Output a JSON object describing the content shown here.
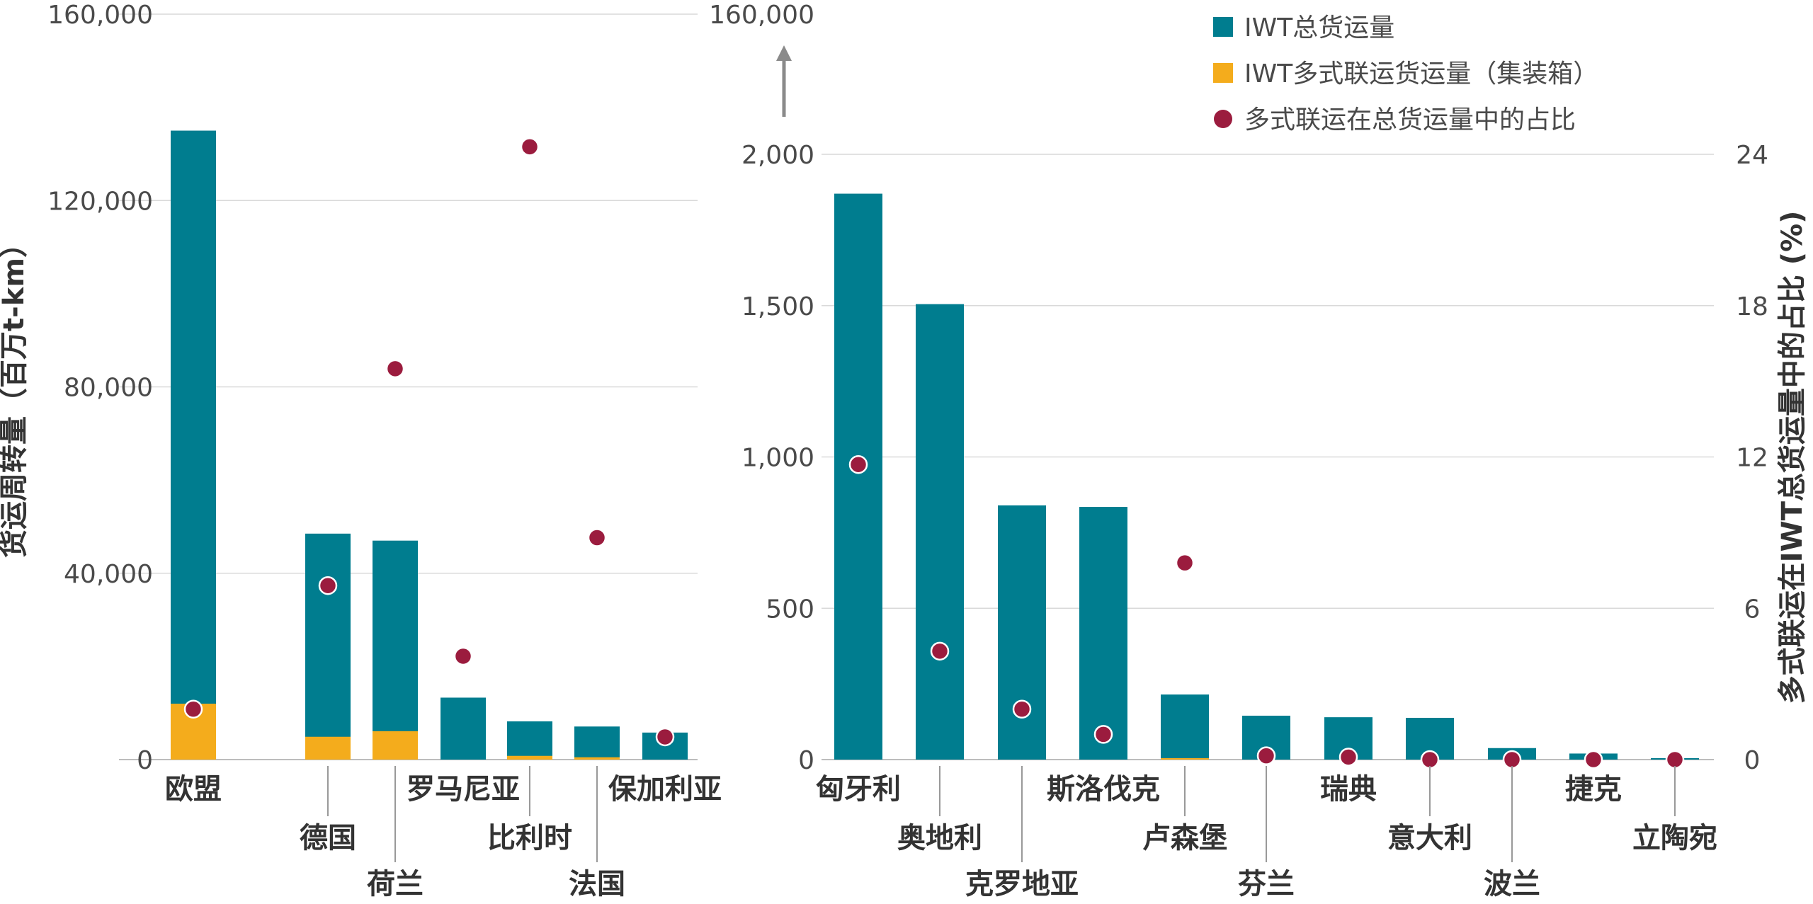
{
  "chart_data": [
    {
      "type": "bar",
      "stacked": true,
      "ylabel": "货运周转量（百万t-km）",
      "ylim": [
        0,
        160000
      ],
      "yticks": [
        "0",
        "40,000",
        "80,000",
        "120,000",
        "160,000"
      ],
      "ytick_values": [
        0,
        40000,
        80000,
        120000,
        160000
      ],
      "categories": [
        "欧盟",
        "德国",
        "荷兰",
        "罗马尼亚",
        "比利时",
        "法国",
        "保加利亚"
      ],
      "series": [
        {
          "name": "IWT总货运量",
          "color": "#007d8f",
          "values": [
            135000,
            48500,
            47000,
            13300,
            8200,
            7100,
            5800
          ]
        },
        {
          "name": "IWT多式联运货运量（集装箱）",
          "color": "#f4ac1c",
          "values": [
            12000,
            4900,
            6100,
            0,
            800,
            500,
            0
          ]
        },
        {
          "name": "多式联运在总货运量中的占比",
          "color": "#9b1c3e",
          "axis": "right",
          "values": [
            2.0,
            6.9,
            15.5,
            4.1,
            24.3,
            8.8,
            0.9
          ]
        }
      ],
      "grid": true
    },
    {
      "type": "bar",
      "stacked": true,
      "ylim": [
        0,
        2000
      ],
      "axis_break_top": "160,000",
      "yticks": [
        "0",
        "500",
        "1,000",
        "1,500",
        "2,000"
      ],
      "ytick_values": [
        0,
        500,
        1000,
        1500,
        2000
      ],
      "y2label": "多式联运在IWT总货运量中的占比 (%)",
      "y2lim": [
        0,
        24
      ],
      "y2ticks": [
        "0",
        "6",
        "12",
        "18",
        "24"
      ],
      "y2tick_values": [
        0,
        6,
        12,
        18,
        24
      ],
      "categories": [
        "匈牙利",
        "奥地利",
        "克罗地亚",
        "斯洛伐克",
        "卢森堡",
        "芬兰",
        "瑞典",
        "意大利",
        "波兰",
        "捷克",
        "立陶宛"
      ],
      "series": [
        {
          "name": "IWT总货运量",
          "color": "#007d8f",
          "values": [
            1870,
            1505,
            840,
            835,
            215,
            145,
            140,
            138,
            38,
            20,
            3
          ]
        },
        {
          "name": "IWT多式联运货运量（集装箱）",
          "color": "#f4ac1c",
          "values": [
            0,
            0,
            0,
            0,
            3,
            0,
            0,
            0,
            0,
            0,
            0
          ]
        },
        {
          "name": "多式联运在总货运量中的占比",
          "color": "#9b1c3e",
          "axis": "right",
          "values": [
            11.7,
            4.3,
            2.0,
            1.0,
            7.8,
            0.15,
            0.1,
            0.0,
            0.0,
            0.0,
            0.0
          ]
        }
      ],
      "legend": {
        "position": "top-right",
        "items": [
          {
            "label": "IWT总货运量",
            "marker": "square",
            "color": "#007d8f"
          },
          {
            "label": "IWT多式联运货运量（集装箱）",
            "marker": "square",
            "color": "#f4ac1c"
          },
          {
            "label": "多式联运在总货运量中的占比",
            "marker": "circle",
            "color": "#9b1c3e"
          }
        ]
      },
      "grid": true
    }
  ],
  "colors": {
    "text": "#4a4a4a",
    "label": "#333333",
    "grid": "#d9d9d9",
    "axis": "#bdbdbd",
    "arrow": "#8a8a8a"
  }
}
